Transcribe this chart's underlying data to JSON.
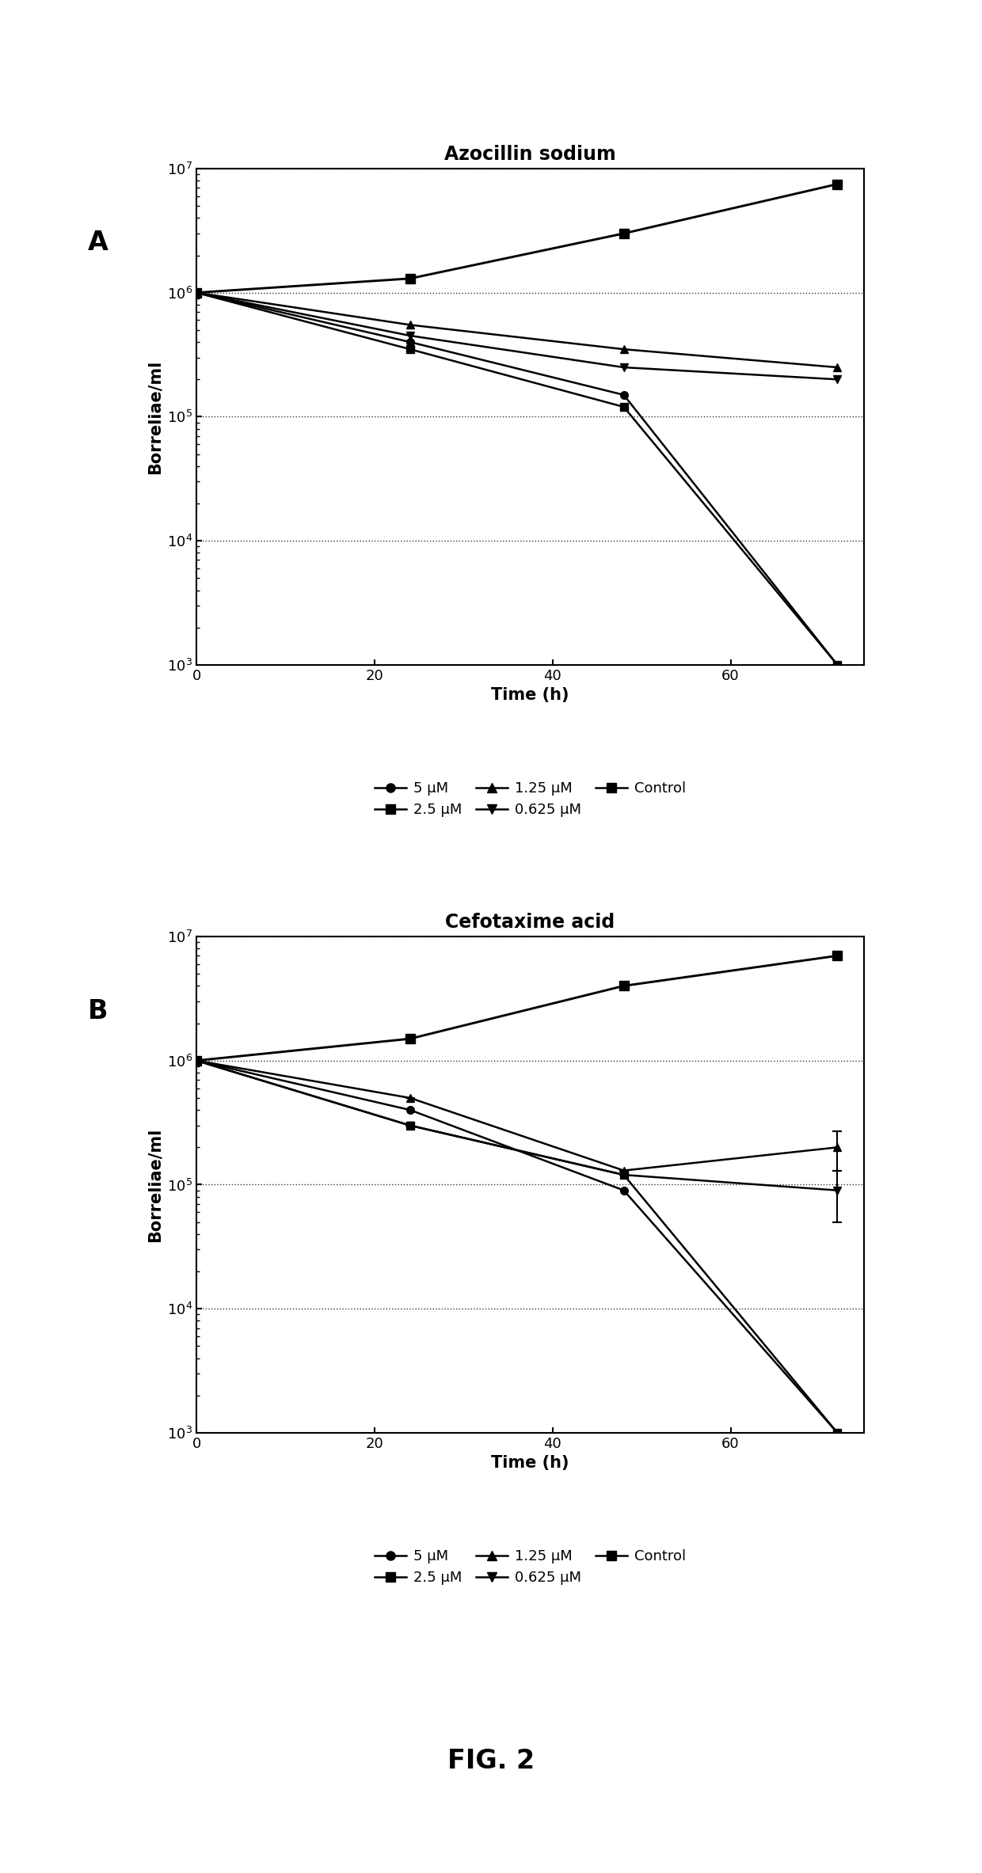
{
  "panel_A": {
    "title": "Azocillin sodium",
    "series": [
      {
        "label": "5 μM",
        "x": [
          0,
          24,
          48,
          72
        ],
        "y": [
          1000000.0,
          400000.0,
          150000.0,
          1000.0
        ],
        "marker": "o",
        "has_error": false,
        "yerr": [
          0,
          0,
          0,
          0
        ]
      },
      {
        "label": "2.5 μM",
        "x": [
          0,
          24,
          48,
          72
        ],
        "y": [
          1000000.0,
          350000.0,
          120000.0,
          1000.0
        ],
        "marker": "s",
        "has_error": false,
        "yerr": [
          0,
          0,
          0,
          0
        ]
      },
      {
        "label": "1.25 μM",
        "x": [
          0,
          24,
          48,
          72
        ],
        "y": [
          1000000.0,
          550000.0,
          350000.0,
          250000.0
        ],
        "marker": "^",
        "has_error": false,
        "yerr": [
          0,
          0,
          0,
          0
        ]
      },
      {
        "label": "0.625 μM",
        "x": [
          0,
          24,
          48,
          72
        ],
        "y": [
          1000000.0,
          450000.0,
          250000.0,
          200000.0
        ],
        "marker": "v",
        "has_error": false,
        "yerr": [
          0,
          0,
          0,
          0
        ]
      },
      {
        "label": "Control",
        "x": [
          0,
          24,
          48,
          72
        ],
        "y": [
          1000000.0,
          1300000.0,
          3000000.0,
          7500000.0
        ],
        "marker": "s",
        "has_error": false,
        "yerr": [
          0,
          0,
          0,
          0
        ]
      }
    ]
  },
  "panel_B": {
    "title": "Cefotaxime acid",
    "series": [
      {
        "label": "5 μM",
        "x": [
          0,
          24,
          48,
          72
        ],
        "y": [
          1000000.0,
          400000.0,
          90000.0,
          1000.0
        ],
        "marker": "o",
        "has_error": false,
        "yerr": [
          0,
          0,
          0,
          0
        ]
      },
      {
        "label": "2.5 μM",
        "x": [
          0,
          24,
          48,
          72
        ],
        "y": [
          1000000.0,
          300000.0,
          120000.0,
          1000.0
        ],
        "marker": "s",
        "has_error": false,
        "yerr": [
          0,
          0,
          0,
          0
        ]
      },
      {
        "label": "1.25 μM",
        "x": [
          0,
          24,
          48,
          72
        ],
        "y": [
          1000000.0,
          500000.0,
          130000.0,
          200000.0
        ],
        "marker": "^",
        "has_error": true,
        "yerr": [
          0,
          0,
          0,
          70000.0
        ]
      },
      {
        "label": "0.625 μM",
        "x": [
          0,
          24,
          48,
          72
        ],
        "y": [
          1000000.0,
          300000.0,
          120000.0,
          90000.0
        ],
        "marker": "v",
        "has_error": true,
        "yerr": [
          0,
          0,
          0,
          40000.0
        ]
      },
      {
        "label": "Control",
        "x": [
          0,
          24,
          48,
          72
        ],
        "y": [
          1000000.0,
          1500000.0,
          4000000.0,
          7000000.0
        ],
        "marker": "s",
        "has_error": false,
        "yerr": [
          0,
          0,
          0,
          0
        ]
      }
    ]
  },
  "ylabel": "Borreliae/ml",
  "xlabel": "Time (h)",
  "ylim_log": [
    1000.0,
    10000000.0
  ],
  "xlim": [
    0,
    75
  ],
  "xticks": [
    0,
    20,
    40,
    60
  ],
  "yticks": [
    1000.0,
    10000.0,
    100000.0,
    1000000.0,
    10000000.0
  ],
  "fig_label": "FIG. 2",
  "panel_labels": [
    "A",
    "B"
  ],
  "line_color": "black",
  "markersize": 7,
  "linewidth": 1.8
}
